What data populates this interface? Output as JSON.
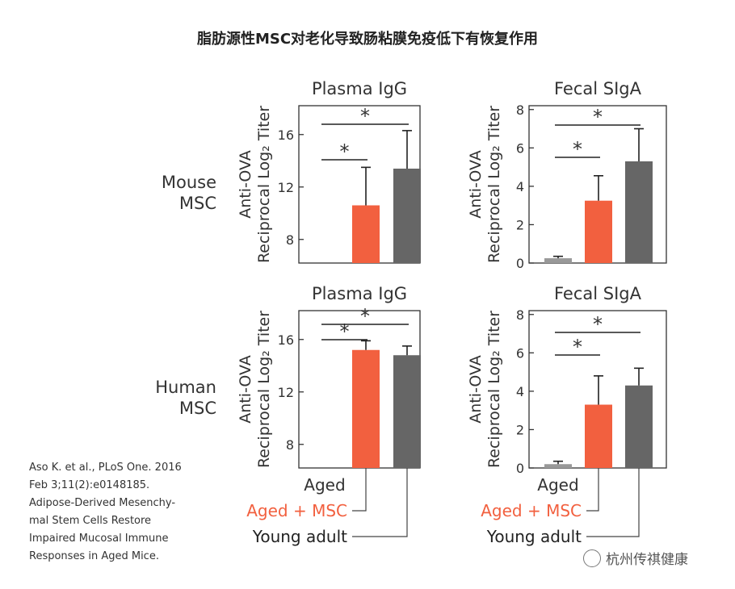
{
  "title": "脂肪源性MSC对老化导致肠粘膜免疫低下有恢复作用",
  "rows": [
    {
      "label_line1": "Mouse",
      "label_line2": "MSC"
    },
    {
      "label_line1": "Human",
      "label_line2": "MSC"
    }
  ],
  "citation": [
    "Aso K. et al., PLoS One. 2016",
    "Feb 3;11(2):e0148185.",
    "Adipose-Derived Mesenchy-",
    "mal Stem Cells Restore",
    "Impaired Mucosal Immune",
    "Responses in Aged Mice."
  ],
  "watermark": "杭州传祺健康",
  "colors": {
    "aged": "#999999",
    "aged_msc": "#f2603f",
    "young": "#666666",
    "axis": "#333333"
  },
  "chart_data": [
    {
      "id": "mouse-plasma-igg",
      "type": "bar",
      "title": "Plasma IgG",
      "ylabel": "Anti-OVA",
      "ylabel2": "Reciprocal Log₂ Titer",
      "categories": [
        "Aged",
        "Aged + MSC",
        "Young adult"
      ],
      "values": [
        null,
        10.6,
        13.4
      ],
      "errors": [
        null,
        2.9,
        2.9
      ],
      "ylim": [
        6.2,
        18.2
      ],
      "yticks": [
        8,
        12,
        16
      ],
      "significance": [
        {
          "from": 0,
          "to": 1,
          "label": "*"
        },
        {
          "from": 0,
          "to": 2,
          "label": "*"
        }
      ]
    },
    {
      "id": "mouse-fecal-siga",
      "type": "bar",
      "title": "Fecal SIgA",
      "ylabel": "Anti-OVA",
      "ylabel2": "Reciprocal Log₂ Titer",
      "categories": [
        "Aged",
        "Aged + MSC",
        "Young adult"
      ],
      "values": [
        0.25,
        3.25,
        5.3
      ],
      "errors": [
        0.1,
        1.3,
        1.7
      ],
      "ylim": [
        0,
        8.2
      ],
      "yticks": [
        0,
        2,
        4,
        6,
        8
      ],
      "significance": [
        {
          "from": 0,
          "to": 1,
          "label": "*"
        },
        {
          "from": 0,
          "to": 2,
          "label": "*"
        }
      ]
    },
    {
      "id": "human-plasma-igg",
      "type": "bar",
      "title": "Plasma IgG",
      "ylabel": "Anti-OVA",
      "ylabel2": "Reciprocal Log₂ Titer",
      "categories": [
        "Aged",
        "Aged + MSC",
        "Young adult"
      ],
      "values": [
        null,
        15.2,
        14.8
      ],
      "errors": [
        null,
        0.7,
        0.7
      ],
      "ylim": [
        6.2,
        18.2
      ],
      "yticks": [
        8,
        12,
        16
      ],
      "significance": [
        {
          "from": 0,
          "to": 1,
          "label": "*"
        },
        {
          "from": 0,
          "to": 2,
          "label": "*"
        }
      ]
    },
    {
      "id": "human-fecal-siga",
      "type": "bar",
      "title": "Fecal SIgA",
      "ylabel": "Anti-OVA",
      "ylabel2": "Reciprocal Log₂ Titer",
      "categories": [
        "Aged",
        "Aged + MSC",
        "Young adult"
      ],
      "values": [
        0.2,
        3.3,
        4.3
      ],
      "errors": [
        0.15,
        1.5,
        0.9
      ],
      "ylim": [
        0,
        8.2
      ],
      "yticks": [
        0,
        2,
        4,
        6,
        8
      ],
      "significance": [
        {
          "from": 0,
          "to": 1,
          "label": "*"
        },
        {
          "from": 0,
          "to": 2,
          "label": "*"
        }
      ]
    }
  ]
}
